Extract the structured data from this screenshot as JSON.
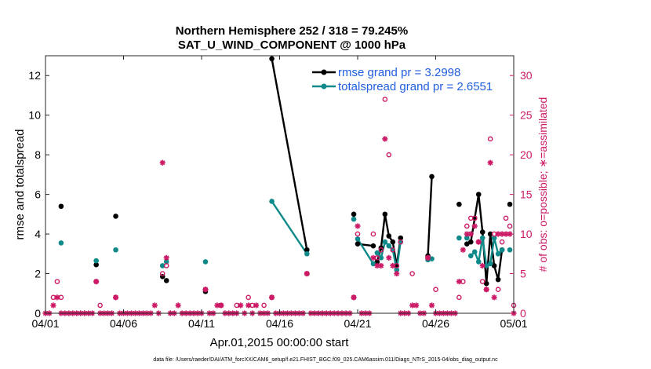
{
  "chart_data": {
    "type": "line",
    "title": "Northern Hemisphere 252 / 318 = 79.245%",
    "subtitle": "SAT_U_WIND_COMPONENT @ 1000 hPa",
    "xlabel": "Apr.01,2015 00:00:00 start",
    "ylabel": "rmse and totalspread",
    "y2label": "# of obs: o=possible; ∗=assimilated",
    "footer": "data file: /Users/raeder/DAI/ATM_forcXX/CAM6_setup/f.e21.FHIST_BGC.f09_025.CAM6assim.011/Diags_NTrS_2015-04/obs_diag_output.nc",
    "xlim": [
      0,
      30
    ],
    "ylim": [
      0,
      13
    ],
    "y2lim": [
      0,
      32.5
    ],
    "xticks": [
      {
        "x": 0,
        "label": "04/01"
      },
      {
        "x": 5,
        "label": "04/06"
      },
      {
        "x": 10,
        "label": "04/11"
      },
      {
        "x": 15,
        "label": "04/16"
      },
      {
        "x": 20,
        "label": "04/21"
      },
      {
        "x": 25,
        "label": "04/26"
      },
      {
        "x": 30,
        "label": "05/01"
      }
    ],
    "yticks": [
      "0",
      "2",
      "4",
      "6",
      "8",
      "10",
      "12"
    ],
    "yticks_values": [
      0,
      2,
      4,
      6,
      8,
      10,
      12
    ],
    "y2ticks": [
      "0",
      "5",
      "10",
      "15",
      "20",
      "25",
      "30"
    ],
    "y2ticks_values": [
      0,
      5,
      10,
      15,
      20,
      25,
      30
    ],
    "legend": [
      {
        "label": "rmse grand pr = 3.2998",
        "color": "#000000"
      },
      {
        "label": "totalspread grand pr = 2.6551",
        "color": "#0f8a8a"
      }
    ],
    "series": [
      {
        "name": "rmse grand pr = 3.2998",
        "color": "#000000",
        "points": [
          [
            1.0,
            5.4
          ],
          [
            3.25,
            2.45
          ],
          [
            4.5,
            4.9
          ],
          [
            7.5,
            1.85
          ],
          [
            7.75,
            1.65
          ],
          [
            10.25,
            1.1
          ],
          [
            14.5,
            12.85
          ],
          [
            16.75,
            3.2
          ],
          [
            19.75,
            5.0
          ],
          [
            20.0,
            3.5
          ],
          [
            21.0,
            3.4
          ],
          [
            21.25,
            2.6
          ],
          [
            21.5,
            3.3
          ],
          [
            21.75,
            5.0
          ],
          [
            22.0,
            3.9
          ],
          [
            22.25,
            3.6
          ],
          [
            22.5,
            2.4
          ],
          [
            22.75,
            3.8
          ],
          [
            24.5,
            2.9
          ],
          [
            24.75,
            6.9
          ],
          [
            26.5,
            5.5
          ],
          [
            27.0,
            3.5
          ],
          [
            27.25,
            3.6
          ],
          [
            27.5,
            4.8
          ],
          [
            27.75,
            6.0
          ],
          [
            28.0,
            4.1
          ],
          [
            28.25,
            1.5
          ],
          [
            28.5,
            4.0
          ],
          [
            28.75,
            2.4
          ],
          [
            29.0,
            1.7
          ],
          [
            29.25,
            3.2
          ],
          [
            29.75,
            5.5
          ]
        ],
        "segments": [
          [
            6,
            7
          ],
          [
            9,
            10
          ],
          [
            11,
            12,
            13,
            14,
            15,
            16,
            17
          ],
          [
            18,
            19
          ],
          [
            22,
            23,
            24,
            25,
            26,
            27,
            28,
            29,
            30
          ]
        ]
      },
      {
        "name": "totalspread grand pr = 2.6551",
        "color": "#0f8a8a",
        "points": [
          [
            1.0,
            3.55
          ],
          [
            3.25,
            2.65
          ],
          [
            4.5,
            3.2
          ],
          [
            7.5,
            2.4
          ],
          [
            7.75,
            2.6
          ],
          [
            10.25,
            2.6
          ],
          [
            14.5,
            5.65
          ],
          [
            16.75,
            3.0
          ],
          [
            19.75,
            4.75
          ],
          [
            20.0,
            3.75
          ],
          [
            21.0,
            2.5
          ],
          [
            21.25,
            3.05
          ],
          [
            21.5,
            2.8
          ],
          [
            21.75,
            3.6
          ],
          [
            22.0,
            3.4
          ],
          [
            22.25,
            3.2
          ],
          [
            22.5,
            2.2
          ],
          [
            22.75,
            3.6
          ],
          [
            24.5,
            2.7
          ],
          [
            24.75,
            2.75
          ],
          [
            26.5,
            3.8
          ],
          [
            27.0,
            3.8
          ],
          [
            27.25,
            2.9
          ],
          [
            27.5,
            3.1
          ],
          [
            27.75,
            2.6
          ],
          [
            28.0,
            3.8
          ],
          [
            28.25,
            2.4
          ],
          [
            28.5,
            2.5
          ],
          [
            28.75,
            3.8
          ],
          [
            29.0,
            3.0
          ],
          [
            29.25,
            3.2
          ],
          [
            29.75,
            3.2
          ]
        ],
        "segments": [
          [
            6,
            7
          ],
          [
            9,
            10
          ],
          [
            11,
            12,
            13,
            14,
            15,
            16,
            17
          ],
          [
            18,
            19
          ],
          [
            22,
            23,
            24,
            25,
            26,
            27,
            28,
            29,
            30
          ]
        ]
      }
    ],
    "obs_possible": [
      [
        0.5,
        2
      ],
      [
        0.75,
        4
      ],
      [
        1.0,
        2
      ],
      [
        3.25,
        4
      ],
      [
        3.5,
        1
      ],
      [
        4.5,
        2
      ],
      [
        7.5,
        5
      ],
      [
        7.75,
        6
      ],
      [
        10.25,
        3
      ],
      [
        11.25,
        1
      ],
      [
        12.25,
        1
      ],
      [
        13.0,
        2
      ],
      [
        13.25,
        1
      ],
      [
        14.0,
        1
      ],
      [
        14.5,
        2
      ],
      [
        16.75,
        5
      ],
      [
        19.75,
        2
      ],
      [
        20.0,
        10
      ],
      [
        21.0,
        10
      ],
      [
        21.25,
        7
      ],
      [
        21.5,
        8
      ],
      [
        21.75,
        27
      ],
      [
        22.0,
        20
      ],
      [
        22.25,
        8
      ],
      [
        22.5,
        6
      ],
      [
        22.75,
        9
      ],
      [
        23.5,
        5
      ],
      [
        24.5,
        7
      ],
      [
        25.0,
        3
      ],
      [
        26.5,
        2
      ],
      [
        26.75,
        4
      ],
      [
        27.0,
        11
      ],
      [
        27.25,
        12
      ],
      [
        27.5,
        12
      ],
      [
        27.75,
        9
      ],
      [
        28.0,
        4
      ],
      [
        28.25,
        3
      ],
      [
        28.5,
        22
      ],
      [
        28.75,
        10
      ],
      [
        29.0,
        3
      ],
      [
        29.25,
        9
      ],
      [
        29.5,
        12
      ],
      [
        29.75,
        11
      ],
      [
        30.0,
        1
      ]
    ],
    "obs_assimilated": [
      [
        0.0,
        0
      ],
      [
        0.25,
        0
      ],
      [
        0.5,
        1
      ],
      [
        0.75,
        2
      ],
      [
        1.0,
        0
      ],
      [
        1.25,
        0
      ],
      [
        1.5,
        0
      ],
      [
        1.75,
        0
      ],
      [
        2.0,
        0
      ],
      [
        2.25,
        0
      ],
      [
        2.5,
        0
      ],
      [
        2.75,
        0
      ],
      [
        3.0,
        0
      ],
      [
        3.25,
        4
      ],
      [
        3.5,
        0
      ],
      [
        3.75,
        0
      ],
      [
        4.0,
        0
      ],
      [
        4.25,
        0
      ],
      [
        4.5,
        2
      ],
      [
        4.75,
        0
      ],
      [
        5.0,
        0
      ],
      [
        5.25,
        0
      ],
      [
        5.5,
        0
      ],
      [
        5.75,
        0
      ],
      [
        6.0,
        0
      ],
      [
        6.25,
        0
      ],
      [
        6.5,
        0
      ],
      [
        6.75,
        0
      ],
      [
        7.0,
        1
      ],
      [
        7.25,
        0
      ],
      [
        7.5,
        19
      ],
      [
        7.75,
        7
      ],
      [
        8.0,
        0
      ],
      [
        8.25,
        0
      ],
      [
        8.5,
        1
      ],
      [
        8.75,
        0
      ],
      [
        9.0,
        0
      ],
      [
        9.25,
        0
      ],
      [
        9.5,
        0
      ],
      [
        9.75,
        0
      ],
      [
        10.0,
        0
      ],
      [
        10.25,
        3
      ],
      [
        10.5,
        0
      ],
      [
        10.75,
        0
      ],
      [
        11.0,
        1
      ],
      [
        11.25,
        1
      ],
      [
        11.5,
        0
      ],
      [
        11.75,
        0
      ],
      [
        12.0,
        0
      ],
      [
        12.25,
        0
      ],
      [
        12.5,
        1
      ],
      [
        12.75,
        0
      ],
      [
        13.0,
        1
      ],
      [
        13.25,
        0
      ],
      [
        13.5,
        1
      ],
      [
        13.75,
        0
      ],
      [
        14.0,
        0
      ],
      [
        14.25,
        0
      ],
      [
        14.5,
        2
      ],
      [
        14.75,
        0
      ],
      [
        15.0,
        0
      ],
      [
        15.25,
        0
      ],
      [
        15.5,
        0
      ],
      [
        15.75,
        0
      ],
      [
        16.0,
        0
      ],
      [
        16.25,
        0
      ],
      [
        16.5,
        0
      ],
      [
        16.75,
        5
      ],
      [
        17.0,
        0
      ],
      [
        17.25,
        0
      ],
      [
        17.5,
        0
      ],
      [
        17.75,
        0
      ],
      [
        18.0,
        0
      ],
      [
        18.25,
        0
      ],
      [
        18.5,
        0
      ],
      [
        18.75,
        0
      ],
      [
        19.0,
        0
      ],
      [
        19.25,
        0
      ],
      [
        19.5,
        0
      ],
      [
        19.75,
        2
      ],
      [
        20.0,
        11
      ],
      [
        20.25,
        0
      ],
      [
        20.5,
        0
      ],
      [
        20.75,
        0
      ],
      [
        21.0,
        7
      ],
      [
        21.25,
        6
      ],
      [
        21.5,
        6
      ],
      [
        21.75,
        22
      ],
      [
        22.0,
        7
      ],
      [
        22.25,
        6
      ],
      [
        22.5,
        5
      ],
      [
        22.75,
        0
      ],
      [
        23.0,
        0
      ],
      [
        23.25,
        0
      ],
      [
        23.5,
        1
      ],
      [
        23.75,
        1
      ],
      [
        24.0,
        0
      ],
      [
        24.25,
        0
      ],
      [
        24.5,
        7
      ],
      [
        24.75,
        1
      ],
      [
        25.0,
        0
      ],
      [
        25.25,
        0
      ],
      [
        25.5,
        0
      ],
      [
        25.75,
        0
      ],
      [
        26.0,
        0
      ],
      [
        26.25,
        0
      ],
      [
        26.5,
        4
      ],
      [
        26.75,
        8
      ],
      [
        27.0,
        10
      ],
      [
        27.25,
        10
      ],
      [
        27.5,
        11
      ],
      [
        27.75,
        9
      ],
      [
        28.0,
        6
      ],
      [
        28.25,
        3
      ],
      [
        28.5,
        19
      ],
      [
        28.75,
        2
      ],
      [
        29.0,
        10
      ],
      [
        29.25,
        10
      ],
      [
        29.5,
        10
      ],
      [
        29.75,
        10
      ],
      [
        30.0,
        0
      ]
    ]
  }
}
